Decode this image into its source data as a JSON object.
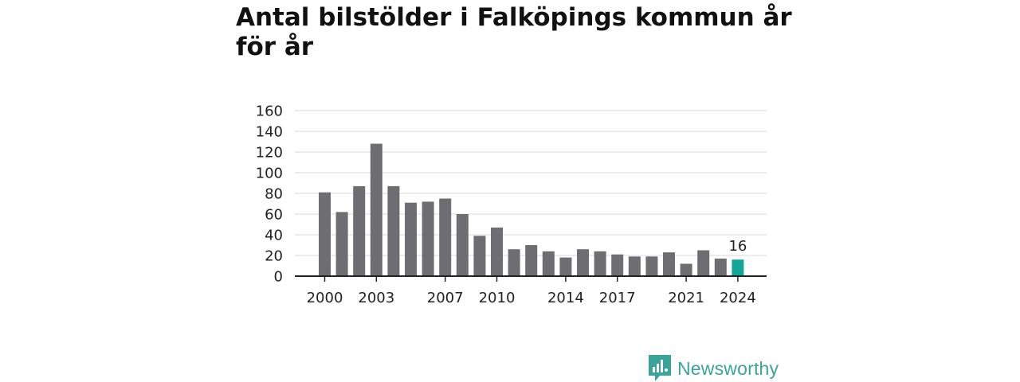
{
  "title": "Antal bilstölder i Falköpings kommun år för år",
  "brand": {
    "name": "Newsworthy",
    "icon": "newsworthy-logo-icon",
    "color": "#3aa39a"
  },
  "chart_data": {
    "type": "bar",
    "categories": [
      "2000",
      "2001",
      "2002",
      "2003",
      "2004",
      "2005",
      "2006",
      "2007",
      "2008",
      "2009",
      "2010",
      "2011",
      "2012",
      "2013",
      "2014",
      "2015",
      "2016",
      "2017",
      "2018",
      "2019",
      "2020",
      "2021",
      "2022",
      "2023",
      "2024"
    ],
    "values": [
      81,
      62,
      87,
      128,
      87,
      71,
      72,
      75,
      60,
      39,
      47,
      26,
      30,
      24,
      18,
      26,
      24,
      21,
      19,
      19,
      23,
      12,
      25,
      17,
      16
    ],
    "x_tick_labels": [
      "2000",
      "2003",
      "2007",
      "2010",
      "2014",
      "2017",
      "2021",
      "2024"
    ],
    "y_ticks": [
      0,
      20,
      40,
      60,
      80,
      100,
      120,
      140,
      160
    ],
    "ylim": [
      0,
      160
    ],
    "xlabel": "",
    "ylabel": "",
    "grid": true,
    "highlight": {
      "category": "2024",
      "label": "16"
    },
    "colors": {
      "bar": "#6e6d72",
      "highlight": "#13a596",
      "grid": "#d9d9d9",
      "axis": "#222222"
    }
  }
}
